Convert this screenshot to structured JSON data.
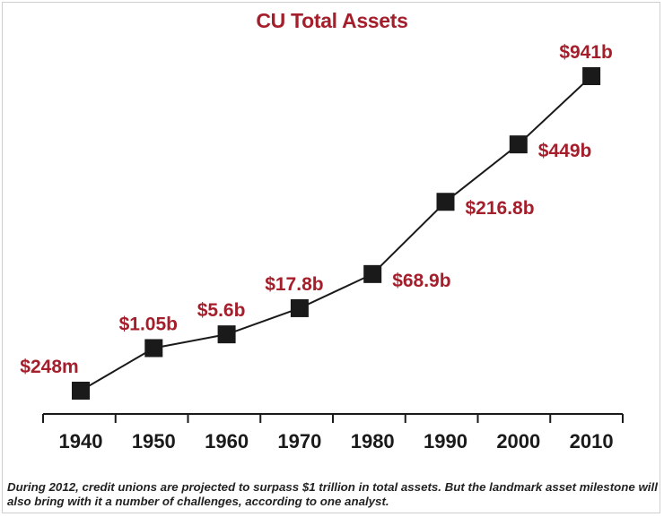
{
  "chart_data": {
    "type": "line",
    "title": "CU Total Assets",
    "x": [
      "1940",
      "1950",
      "1960",
      "1970",
      "1980",
      "1990",
      "2000",
      "2010"
    ],
    "value_labels": [
      "$248m",
      "$1.05b",
      "$5.6b",
      "$17.8b",
      "$68.9b",
      "$216.8b",
      "$449b",
      "$941b"
    ],
    "values_billions": [
      0.248,
      1.05,
      5.6,
      17.8,
      68.9,
      216.8,
      449,
      941
    ],
    "label_position": [
      "above",
      "above",
      "above",
      "above",
      "right",
      "right",
      "right",
      "above"
    ],
    "grid": false,
    "colors": {
      "title": "#a41f2b",
      "labels": "#a41f2b",
      "line": "#1a1a1a",
      "marker": "#1a1a1a"
    }
  },
  "caption": "During 2012, credit unions are projected to surpass $1 trillion in total assets. But the landmark asset milestone will also bring with it a number of challenges, according to one analyst."
}
